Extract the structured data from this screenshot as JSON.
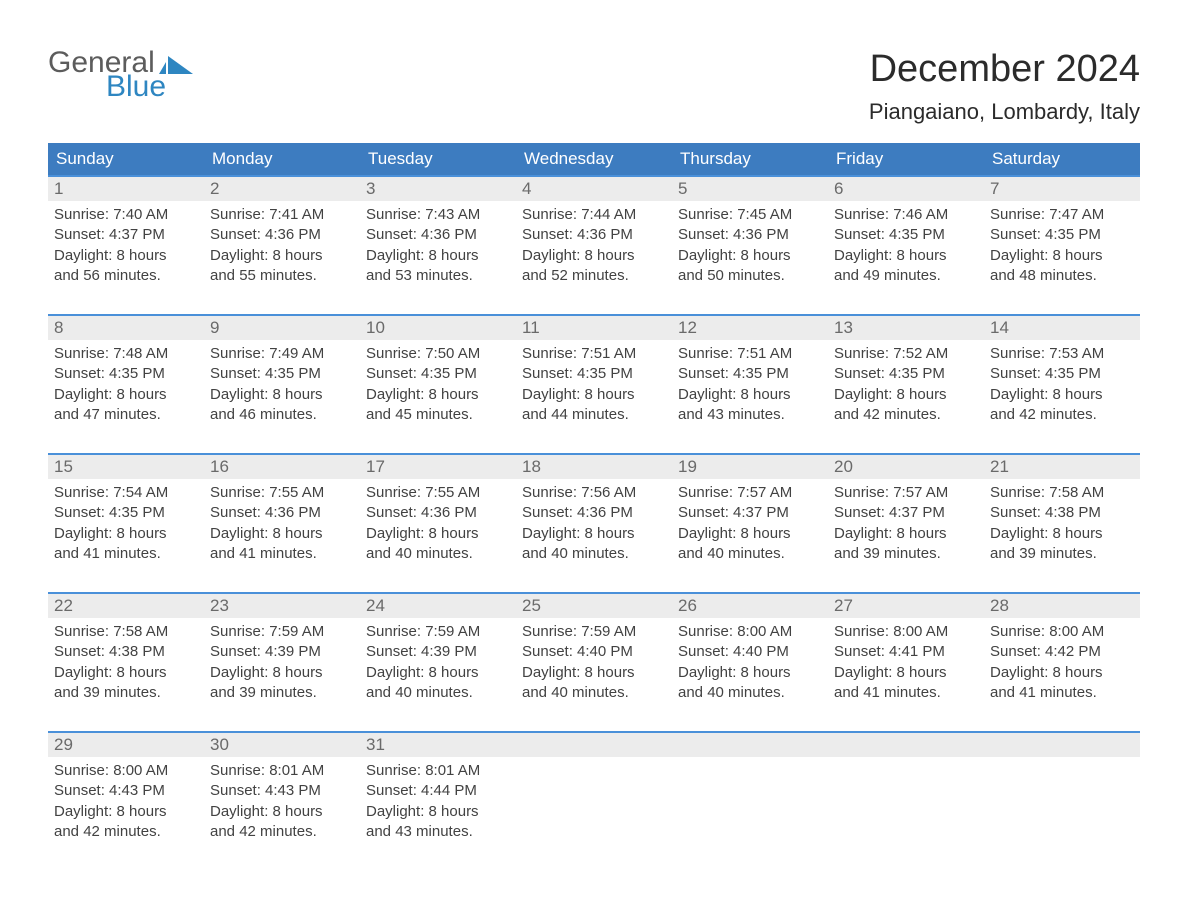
{
  "logo": {
    "word1": "General",
    "word2": "Blue",
    "mark_color": "#2e86c1"
  },
  "title": "December 2024",
  "subtitle": "Piangaiano, Lombardy, Italy",
  "colors": {
    "header_bg": "#3d7cc0",
    "header_text": "#ffffff",
    "daynum_bg": "#ececec",
    "row_border": "#4a90d9",
    "body_text": "#424242"
  },
  "days_of_week": [
    "Sunday",
    "Monday",
    "Tuesday",
    "Wednesday",
    "Thursday",
    "Friday",
    "Saturday"
  ],
  "weeks": [
    [
      {
        "n": "1",
        "sunrise": "7:40 AM",
        "sunset": "4:37 PM",
        "dl1": "8 hours",
        "dl2": "and 56 minutes."
      },
      {
        "n": "2",
        "sunrise": "7:41 AM",
        "sunset": "4:36 PM",
        "dl1": "8 hours",
        "dl2": "and 55 minutes."
      },
      {
        "n": "3",
        "sunrise": "7:43 AM",
        "sunset": "4:36 PM",
        "dl1": "8 hours",
        "dl2": "and 53 minutes."
      },
      {
        "n": "4",
        "sunrise": "7:44 AM",
        "sunset": "4:36 PM",
        "dl1": "8 hours",
        "dl2": "and 52 minutes."
      },
      {
        "n": "5",
        "sunrise": "7:45 AM",
        "sunset": "4:36 PM",
        "dl1": "8 hours",
        "dl2": "and 50 minutes."
      },
      {
        "n": "6",
        "sunrise": "7:46 AM",
        "sunset": "4:35 PM",
        "dl1": "8 hours",
        "dl2": "and 49 minutes."
      },
      {
        "n": "7",
        "sunrise": "7:47 AM",
        "sunset": "4:35 PM",
        "dl1": "8 hours",
        "dl2": "and 48 minutes."
      }
    ],
    [
      {
        "n": "8",
        "sunrise": "7:48 AM",
        "sunset": "4:35 PM",
        "dl1": "8 hours",
        "dl2": "and 47 minutes."
      },
      {
        "n": "9",
        "sunrise": "7:49 AM",
        "sunset": "4:35 PM",
        "dl1": "8 hours",
        "dl2": "and 46 minutes."
      },
      {
        "n": "10",
        "sunrise": "7:50 AM",
        "sunset": "4:35 PM",
        "dl1": "8 hours",
        "dl2": "and 45 minutes."
      },
      {
        "n": "11",
        "sunrise": "7:51 AM",
        "sunset": "4:35 PM",
        "dl1": "8 hours",
        "dl2": "and 44 minutes."
      },
      {
        "n": "12",
        "sunrise": "7:51 AM",
        "sunset": "4:35 PM",
        "dl1": "8 hours",
        "dl2": "and 43 minutes."
      },
      {
        "n": "13",
        "sunrise": "7:52 AM",
        "sunset": "4:35 PM",
        "dl1": "8 hours",
        "dl2": "and 42 minutes."
      },
      {
        "n": "14",
        "sunrise": "7:53 AM",
        "sunset": "4:35 PM",
        "dl1": "8 hours",
        "dl2": "and 42 minutes."
      }
    ],
    [
      {
        "n": "15",
        "sunrise": "7:54 AM",
        "sunset": "4:35 PM",
        "dl1": "8 hours",
        "dl2": "and 41 minutes."
      },
      {
        "n": "16",
        "sunrise": "7:55 AM",
        "sunset": "4:36 PM",
        "dl1": "8 hours",
        "dl2": "and 41 minutes."
      },
      {
        "n": "17",
        "sunrise": "7:55 AM",
        "sunset": "4:36 PM",
        "dl1": "8 hours",
        "dl2": "and 40 minutes."
      },
      {
        "n": "18",
        "sunrise": "7:56 AM",
        "sunset": "4:36 PM",
        "dl1": "8 hours",
        "dl2": "and 40 minutes."
      },
      {
        "n": "19",
        "sunrise": "7:57 AM",
        "sunset": "4:37 PM",
        "dl1": "8 hours",
        "dl2": "and 40 minutes."
      },
      {
        "n": "20",
        "sunrise": "7:57 AM",
        "sunset": "4:37 PM",
        "dl1": "8 hours",
        "dl2": "and 39 minutes."
      },
      {
        "n": "21",
        "sunrise": "7:58 AM",
        "sunset": "4:38 PM",
        "dl1": "8 hours",
        "dl2": "and 39 minutes."
      }
    ],
    [
      {
        "n": "22",
        "sunrise": "7:58 AM",
        "sunset": "4:38 PM",
        "dl1": "8 hours",
        "dl2": "and 39 minutes."
      },
      {
        "n": "23",
        "sunrise": "7:59 AM",
        "sunset": "4:39 PM",
        "dl1": "8 hours",
        "dl2": "and 39 minutes."
      },
      {
        "n": "24",
        "sunrise": "7:59 AM",
        "sunset": "4:39 PM",
        "dl1": "8 hours",
        "dl2": "and 40 minutes."
      },
      {
        "n": "25",
        "sunrise": "7:59 AM",
        "sunset": "4:40 PM",
        "dl1": "8 hours",
        "dl2": "and 40 minutes."
      },
      {
        "n": "26",
        "sunrise": "8:00 AM",
        "sunset": "4:40 PM",
        "dl1": "8 hours",
        "dl2": "and 40 minutes."
      },
      {
        "n": "27",
        "sunrise": "8:00 AM",
        "sunset": "4:41 PM",
        "dl1": "8 hours",
        "dl2": "and 41 minutes."
      },
      {
        "n": "28",
        "sunrise": "8:00 AM",
        "sunset": "4:42 PM",
        "dl1": "8 hours",
        "dl2": "and 41 minutes."
      }
    ],
    [
      {
        "n": "29",
        "sunrise": "8:00 AM",
        "sunset": "4:43 PM",
        "dl1": "8 hours",
        "dl2": "and 42 minutes."
      },
      {
        "n": "30",
        "sunrise": "8:01 AM",
        "sunset": "4:43 PM",
        "dl1": "8 hours",
        "dl2": "and 42 minutes."
      },
      {
        "n": "31",
        "sunrise": "8:01 AM",
        "sunset": "4:44 PM",
        "dl1": "8 hours",
        "dl2": "and 43 minutes."
      },
      {
        "empty": true
      },
      {
        "empty": true
      },
      {
        "empty": true
      },
      {
        "empty": true
      }
    ]
  ],
  "labels": {
    "sunrise": "Sunrise: ",
    "sunset": "Sunset: ",
    "daylight": "Daylight: "
  }
}
